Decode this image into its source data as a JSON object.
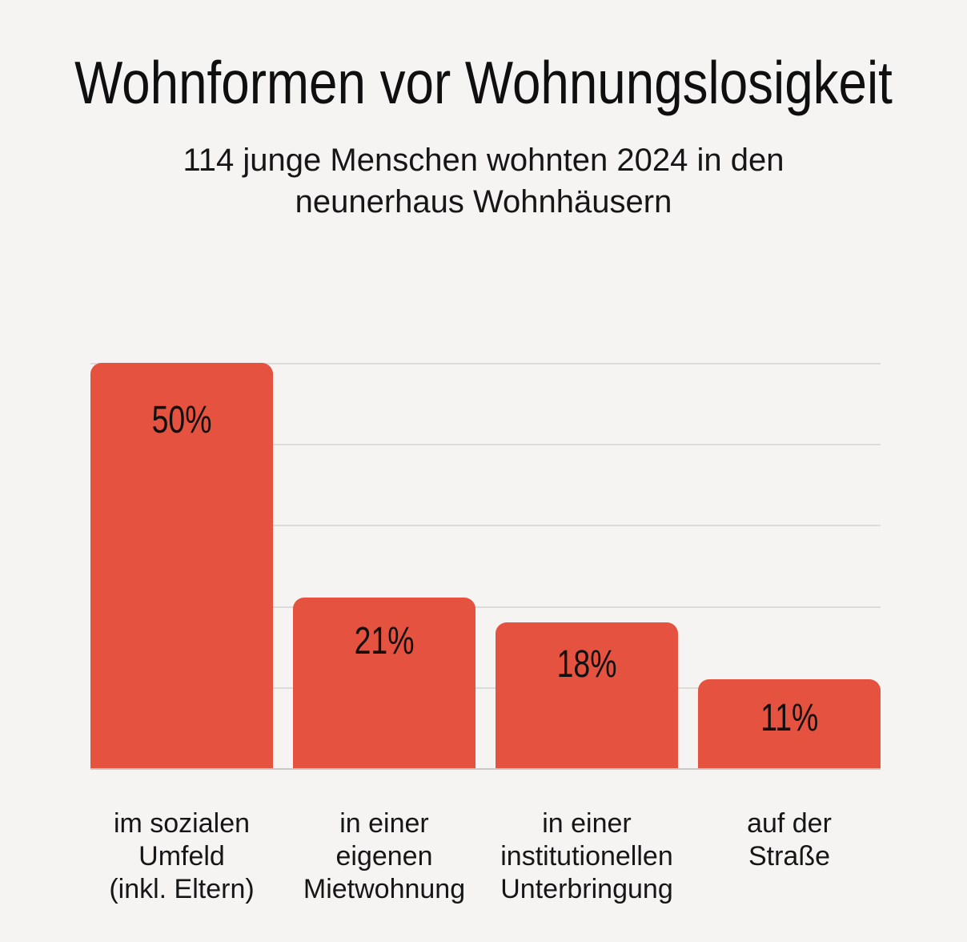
{
  "header": {
    "title": "Wohnformen vor Wohnungslosigkeit",
    "subtitle": "114 junge Menschen wohnten 2024 in den neunerhaus Wohnhäusern"
  },
  "chart_data": {
    "type": "bar",
    "title": "Wohnformen vor Wohnungslosigkeit",
    "subtitle": "114 junge Menschen wohnten 2024 in den neunerhaus Wohnhäusern",
    "subtitle_lines": [
      "114 junge Menschen wohnten 2024 in den",
      "neunerhaus Wohnhäusern"
    ],
    "categories": [
      "im sozialen Umfeld (inkl. Eltern)",
      "in einer eigenen Mietwohnung",
      "in einer institutionellen Unterbringung",
      "auf der Straße"
    ],
    "category_lines": [
      [
        "im sozialen",
        "Umfeld",
        "(inkl. Eltern)"
      ],
      [
        "in einer",
        "eigenen",
        "Mietwohnung"
      ],
      [
        "in einer",
        "institutionellen",
        "Unterbringung"
      ],
      [
        "auf der",
        "Straße"
      ]
    ],
    "values": [
      50,
      21,
      18,
      11
    ],
    "value_labels": [
      "50%",
      "21%",
      "18%",
      "11%"
    ],
    "unit": "%",
    "xlabel": "",
    "ylabel": "",
    "ylim": [
      0,
      50
    ],
    "gridline_step": 10,
    "grid": "horizontal",
    "legend": "none",
    "colors": {
      "bar": "#e5523f",
      "gridline": "#dbdbdb",
      "baseline": "#c9c9c9",
      "background": "#f5f4f2",
      "text": "#111111"
    }
  }
}
